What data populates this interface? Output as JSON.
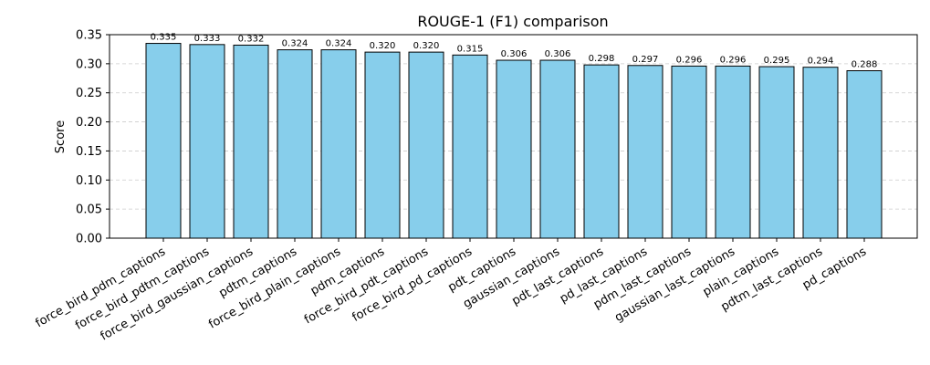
{
  "chart_data": {
    "type": "bar",
    "title": "ROUGE-1 (F1) comparison",
    "xlabel": "",
    "ylabel": "Score",
    "ylim": [
      0,
      0.35
    ],
    "yticks": [
      "0.00",
      "0.05",
      "0.10",
      "0.15",
      "0.20",
      "0.25",
      "0.30",
      "0.35"
    ],
    "grid": "horizontal dashed",
    "bar_color": "#87ceeb",
    "bar_edge_color": "#000000",
    "categories": [
      "force_bird_pdm_captions",
      "force_bird_pdtm_captions",
      "force_bird_gaussian_captions",
      "pdtm_captions",
      "force_bird_plain_captions",
      "pdm_captions",
      "force_bird_pdt_captions",
      "force_bird_pd_captions",
      "pdt_captions",
      "gaussian_captions",
      "pdt_last_captions",
      "pd_last_captions",
      "pdm_last_captions",
      "gaussian_last_captions",
      "plain_captions",
      "pdtm_last_captions",
      "pd_captions"
    ],
    "values": [
      0.335,
      0.333,
      0.332,
      0.324,
      0.324,
      0.32,
      0.32,
      0.315,
      0.306,
      0.306,
      0.298,
      0.297,
      0.296,
      0.296,
      0.295,
      0.294,
      0.288
    ],
    "value_labels": [
      "0.335",
      "0.333",
      "0.332",
      "0.324",
      "0.324",
      "0.320",
      "0.320",
      "0.315",
      "0.306",
      "0.306",
      "0.298",
      "0.297",
      "0.296",
      "0.296",
      "0.295",
      "0.294",
      "0.288"
    ]
  }
}
